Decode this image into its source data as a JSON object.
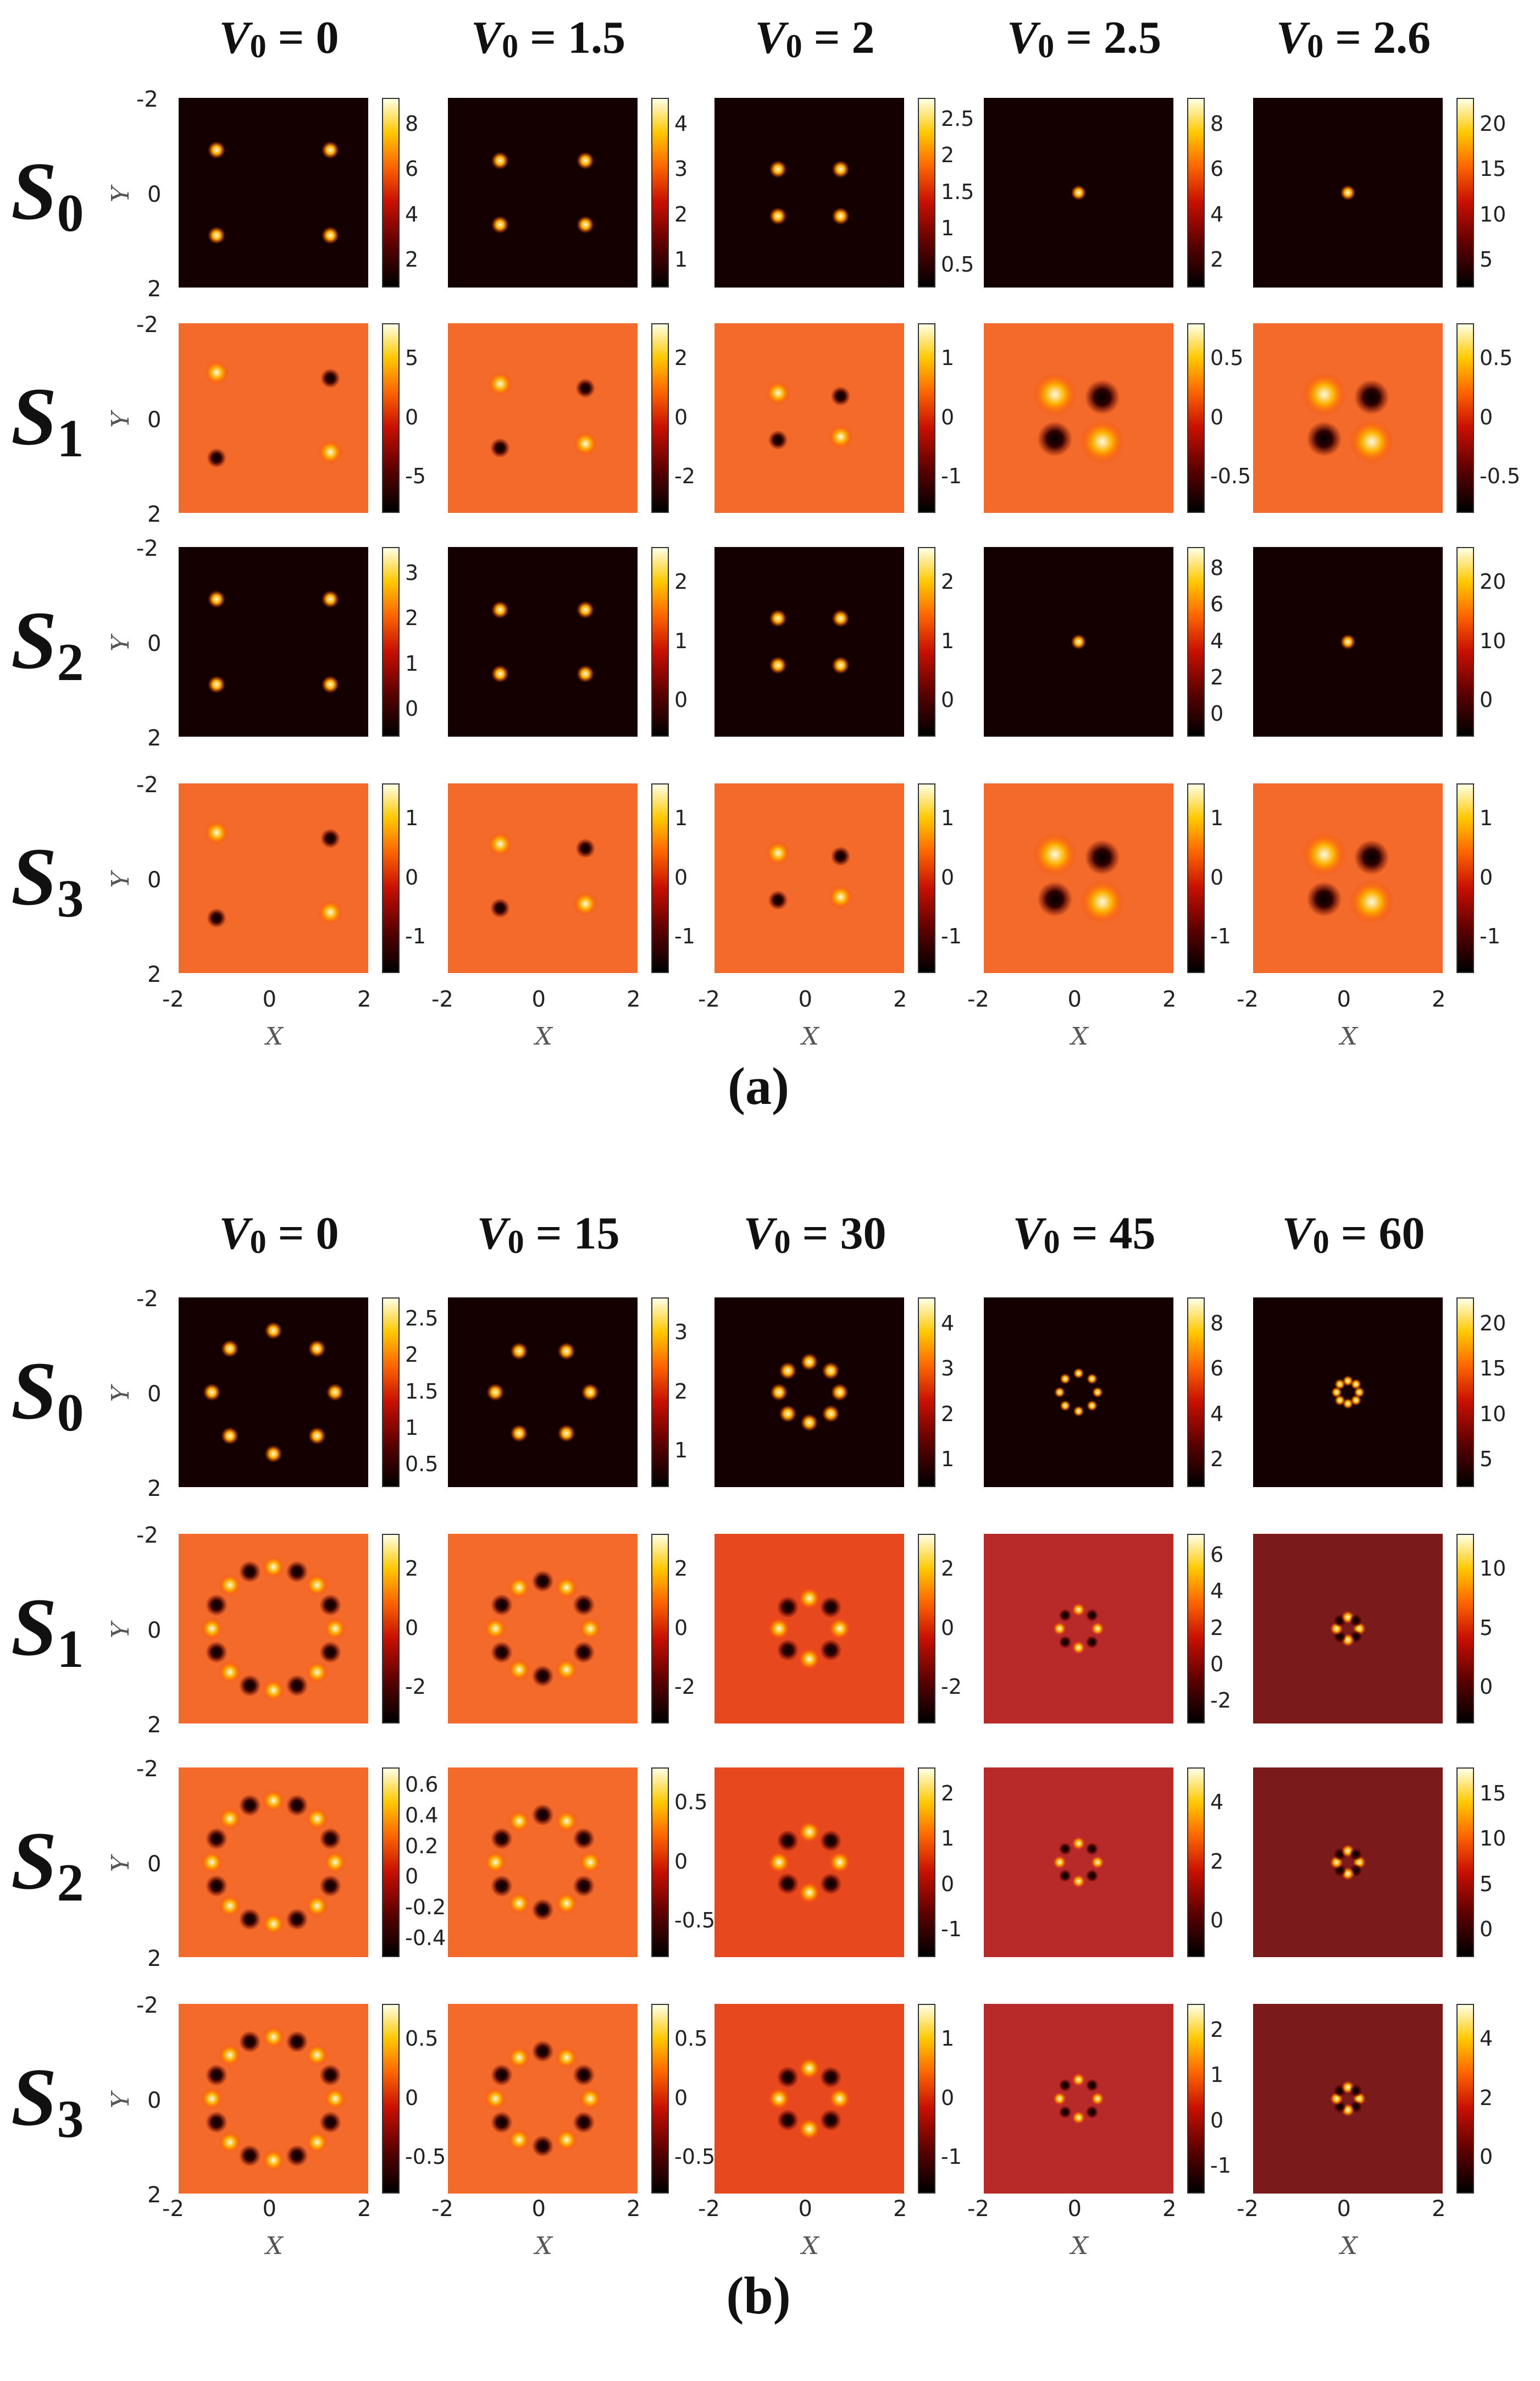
{
  "figures": [
    {
      "id": "a",
      "caption": "(a)",
      "v_symbol": "V",
      "v_sub": "0",
      "columns": [
        "= 0",
        "= 1.5",
        "= 2",
        "= 2.5",
        "= 2.6"
      ],
      "rows": [
        {
          "symbol": "S",
          "sub": "0",
          "bg": "dark",
          "colorbar_ticks": [
            [
              "8",
              "6",
              "4",
              "2"
            ],
            [
              "4",
              "3",
              "2",
              "1"
            ],
            [
              "2.5",
              "2",
              "1.5",
              "1",
              "0.5"
            ],
            [
              "8",
              "6",
              "4",
              "2"
            ],
            [
              "20",
              "15",
              "10",
              "5"
            ]
          ]
        },
        {
          "symbol": "S",
          "sub": "1",
          "bg": "orange",
          "colorbar_ticks": [
            [
              "5",
              "0",
              "-5"
            ],
            [
              "2",
              "0",
              "-2"
            ],
            [
              "1",
              "0",
              "-1"
            ],
            [
              "0.5",
              "0",
              "-0.5"
            ],
            [
              "0.5",
              "0",
              "-0.5"
            ]
          ]
        },
        {
          "symbol": "S",
          "sub": "2",
          "bg": "dark",
          "colorbar_ticks": [
            [
              "3",
              "2",
              "1",
              "0"
            ],
            [
              "2",
              "1",
              "0"
            ],
            [
              "2",
              "1",
              "0"
            ],
            [
              "8",
              "6",
              "4",
              "2",
              "0"
            ],
            [
              "20",
              "10",
              "0"
            ]
          ]
        },
        {
          "symbol": "S",
          "sub": "3",
          "bg": "orange",
          "colorbar_ticks": [
            [
              "1",
              "0",
              "-1"
            ],
            [
              "1",
              "0",
              "-1"
            ],
            [
              "1",
              "0",
              "-1"
            ],
            [
              "1",
              "0",
              "-1"
            ],
            [
              "1",
              "0",
              "-1"
            ]
          ]
        }
      ],
      "y_ticks": [
        "-2",
        "0",
        "2"
      ],
      "x_ticks": [
        "-2",
        "0",
        "2"
      ],
      "y_label": "Y",
      "x_label": "X"
    },
    {
      "id": "b",
      "caption": "(b)",
      "v_symbol": "V",
      "v_sub": "0",
      "columns": [
        "= 0",
        "= 15",
        "= 30",
        "= 45",
        "= 60"
      ],
      "rows": [
        {
          "symbol": "S",
          "sub": "0",
          "bg": "dark",
          "colorbar_ticks": [
            [
              "2.5",
              "2",
              "1.5",
              "1",
              "0.5"
            ],
            [
              "3",
              "2",
              "1"
            ],
            [
              "4",
              "3",
              "2",
              "1"
            ],
            [
              "8",
              "6",
              "4",
              "2"
            ],
            [
              "20",
              "15",
              "10",
              "5"
            ]
          ]
        },
        {
          "symbol": "S",
          "sub": "1",
          "bg": "orange",
          "colorbar_ticks": [
            [
              "2",
              "0",
              "-2"
            ],
            [
              "2",
              "0",
              "-2"
            ],
            [
              "2",
              "0",
              "-2"
            ],
            [
              "6",
              "4",
              "2",
              "0",
              "-2"
            ],
            [
              "10",
              "5",
              "0"
            ]
          ]
        },
        {
          "symbol": "S",
          "sub": "2",
          "bg": "orange",
          "colorbar_ticks": [
            [
              "0.6",
              "0.4",
              "0.2",
              "0",
              "-0.2",
              "-0.4"
            ],
            [
              "0.5",
              "0",
              "-0.5"
            ],
            [
              "2",
              "1",
              "0",
              "-1"
            ],
            [
              "4",
              "2",
              "0"
            ],
            [
              "15",
              "10",
              "5",
              "0"
            ]
          ]
        },
        {
          "symbol": "S",
          "sub": "3",
          "bg": "orange",
          "colorbar_ticks": [
            [
              "0.5",
              "0",
              "-0.5"
            ],
            [
              "0.5",
              "0",
              "-0.5"
            ],
            [
              "1",
              "0",
              "-1"
            ],
            [
              "2",
              "1",
              "0",
              "-1"
            ],
            [
              "4",
              "2",
              "0"
            ]
          ]
        }
      ],
      "y_ticks": [
        "-2",
        "0",
        "2"
      ],
      "x_ticks": [
        "-2",
        "0",
        "2"
      ],
      "y_label": "Y",
      "x_label": "X"
    }
  ],
  "colors": {
    "dark_bg": "#140000",
    "orange_bg": "#f36a2a",
    "bright": "#fffbe0",
    "hot": "#ffb000",
    "hole": "#000000"
  }
}
